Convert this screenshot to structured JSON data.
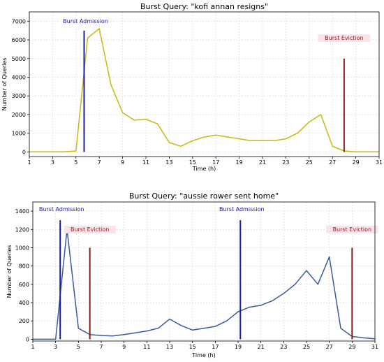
{
  "chart_data": [
    {
      "type": "line",
      "title": "Burst Query: \"kofi annan resigns\"",
      "xlabel": "Time (h)",
      "ylabel": "Number of Queries",
      "xlim": [
        1,
        31
      ],
      "ylim": [
        -250,
        7500
      ],
      "xticks": [
        "1",
        "3",
        "5",
        "7",
        "9",
        "11",
        "13",
        "15",
        "17",
        "19",
        "21",
        "23",
        "25",
        "27",
        "29",
        "31"
      ],
      "yticks": [
        "0",
        "1000",
        "2000",
        "3000",
        "4000",
        "5000",
        "6000",
        "7000"
      ],
      "grid": true,
      "line_color": "#c9b90a",
      "x": [
        1,
        2,
        3,
        4,
        5,
        6,
        7,
        8,
        9,
        10,
        11,
        12,
        13,
        14,
        15,
        16,
        17,
        18,
        19,
        20,
        21,
        22,
        23,
        24,
        25,
        26,
        27,
        28,
        29,
        30,
        31
      ],
      "y": [
        0,
        0,
        0,
        0,
        50,
        6100,
        6600,
        3600,
        2100,
        1700,
        1750,
        1500,
        500,
        300,
        600,
        800,
        900,
        800,
        700,
        600,
        600,
        600,
        700,
        1000,
        1600,
        2000,
        300,
        50,
        0,
        0,
        0
      ],
      "markers": [
        {
          "kind": "admission",
          "x": 5.7,
          "top": 6500,
          "color": "#1a1aaa",
          "label": "Burst Admission",
          "label_x": 5.7,
          "label_y": 6900
        },
        {
          "kind": "eviction",
          "x": 28.0,
          "top": 5000,
          "color": "#8b1a1a",
          "label": "Burst Eviction",
          "label_x": 28.0,
          "label_y": 6000
        }
      ]
    },
    {
      "type": "line",
      "title": "Burst Query: \"aussie rower sent home\"",
      "xlabel": "Time (h)",
      "ylabel": "Number of Queries",
      "xlim": [
        1,
        31
      ],
      "ylim": [
        -20,
        1500
      ],
      "xticks": [
        "1",
        "3",
        "5",
        "7",
        "9",
        "11",
        "13",
        "15",
        "17",
        "19",
        "21",
        "23",
        "25",
        "27",
        "29",
        "31"
      ],
      "yticks": [
        "0",
        "200",
        "400",
        "600",
        "800",
        "1000",
        "1200",
        "1400"
      ],
      "grid": true,
      "line_color": "#3a5a9c",
      "x": [
        1,
        2,
        3,
        4,
        5,
        6,
        7,
        8,
        9,
        10,
        11,
        12,
        13,
        14,
        15,
        16,
        17,
        18,
        19,
        20,
        21,
        22,
        23,
        24,
        25,
        26,
        27,
        28,
        29,
        30,
        31
      ],
      "y": [
        0,
        0,
        0,
        1200,
        120,
        50,
        40,
        35,
        50,
        70,
        90,
        120,
        220,
        150,
        100,
        120,
        140,
        200,
        300,
        350,
        370,
        420,
        500,
        600,
        750,
        600,
        900,
        120,
        30,
        15,
        5
      ],
      "markers": [
        {
          "kind": "admission",
          "x": 3.4,
          "top": 1300,
          "color": "#1a1aaa",
          "label": "Burst Admission",
          "label_x": 3.4,
          "label_y": 1400
        },
        {
          "kind": "eviction",
          "x": 6.0,
          "top": 1000,
          "color": "#8b1a1a",
          "label": "Burst Eviction",
          "label_x": 6.0,
          "label_y": 1180
        },
        {
          "kind": "admission",
          "x": 19.2,
          "top": 1300,
          "color": "#1a1aaa",
          "label": "Burst Admission",
          "label_x": 19.2,
          "label_y": 1400
        },
        {
          "kind": "eviction",
          "x": 29.0,
          "top": 1000,
          "color": "#8b1a1a",
          "label": "Burst Eviction",
          "label_x": 29.0,
          "label_y": 1180
        }
      ]
    }
  ]
}
